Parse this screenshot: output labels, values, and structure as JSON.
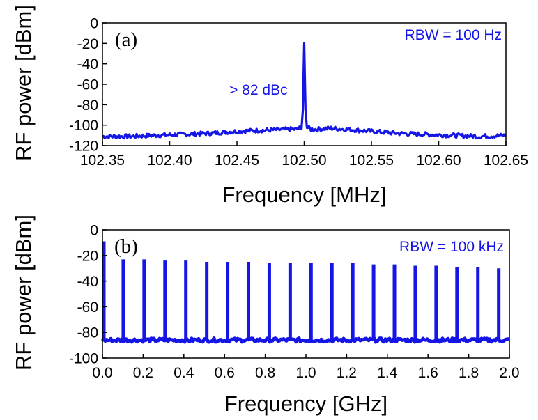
{
  "chart_data": [
    {
      "type": "line",
      "panel_label": "(a)",
      "xlabel": "Frequency [MHz]",
      "ylabel": "RF power [dBm]",
      "xlim": [
        102.35,
        102.65
      ],
      "ylim": [
        -120,
        0
      ],
      "xticks": [
        102.35,
        102.4,
        102.45,
        102.5,
        102.55,
        102.6,
        102.65
      ],
      "xtick_labels": [
        "102.35",
        "102.40",
        "102.45",
        "102.50",
        "102.55",
        "102.60",
        "102.65"
      ],
      "yticks": [
        0,
        -20,
        -40,
        -60,
        -80,
        -100,
        -120
      ],
      "ytick_labels": [
        "0",
        "-20",
        "-40",
        "-60",
        "-80",
        "-100",
        "-120"
      ],
      "annotations": [
        "RBW = 100 Hz",
        "> 82 dBc"
      ],
      "color": "#1515e6",
      "series": [
        {
          "x": [
            102.35,
            102.37,
            102.39,
            102.41,
            102.43,
            102.45,
            102.47,
            102.49,
            102.495,
            102.498,
            102.499,
            102.4995,
            102.5,
            102.5005,
            102.501,
            102.502,
            102.505,
            102.51,
            102.52,
            102.53,
            102.55,
            102.57,
            102.59,
            102.61,
            102.63,
            102.65
          ],
          "values": [
            -111,
            -111,
            -110,
            -109,
            -108,
            -106,
            -105,
            -104,
            -104,
            -102,
            -85,
            -55,
            -20,
            -55,
            -85,
            -102,
            -104,
            -104,
            -103,
            -104,
            -106,
            -108,
            -109,
            -110,
            -111,
            -110
          ]
        }
      ]
    },
    {
      "type": "line",
      "panel_label": "(b)",
      "xlabel": "Frequency [GHz]",
      "ylabel": "RF power [dBm]",
      "xlim": [
        0.0,
        2.0
      ],
      "ylim": [
        -100,
        0
      ],
      "xticks": [
        0.0,
        0.2,
        0.4,
        0.6,
        0.8,
        1.0,
        1.2,
        1.4,
        1.6,
        1.8,
        2.0
      ],
      "xtick_labels": [
        "0.0",
        "0.2",
        "0.4",
        "0.6",
        "0.8",
        "1.0",
        "1.2",
        "1.4",
        "1.6",
        "1.8",
        "2.0"
      ],
      "yticks": [
        0,
        -20,
        -40,
        -60,
        -80,
        -100
      ],
      "ytick_labels": [
        "0",
        "-20",
        "-40",
        "-60",
        "-80",
        "-100"
      ],
      "annotations": [
        "RBW = 100 kHz"
      ],
      "color": "#1515e6",
      "noise_floor": -86,
      "peaks": [
        {
          "x": 0.0,
          "y": -9
        },
        {
          "x": 0.1025,
          "y": -23
        },
        {
          "x": 0.205,
          "y": -23
        },
        {
          "x": 0.3075,
          "y": -24
        },
        {
          "x": 0.41,
          "y": -24
        },
        {
          "x": 0.5125,
          "y": -25
        },
        {
          "x": 0.615,
          "y": -25
        },
        {
          "x": 0.7175,
          "y": -25
        },
        {
          "x": 0.82,
          "y": -26
        },
        {
          "x": 0.9225,
          "y": -26
        },
        {
          "x": 1.025,
          "y": -26
        },
        {
          "x": 1.1275,
          "y": -26
        },
        {
          "x": 1.23,
          "y": -26
        },
        {
          "x": 1.3325,
          "y": -27
        },
        {
          "x": 1.435,
          "y": -27
        },
        {
          "x": 1.5375,
          "y": -28
        },
        {
          "x": 1.64,
          "y": -28
        },
        {
          "x": 1.7425,
          "y": -29
        },
        {
          "x": 1.845,
          "y": -29
        },
        {
          "x": 1.9475,
          "y": -30
        }
      ]
    }
  ]
}
